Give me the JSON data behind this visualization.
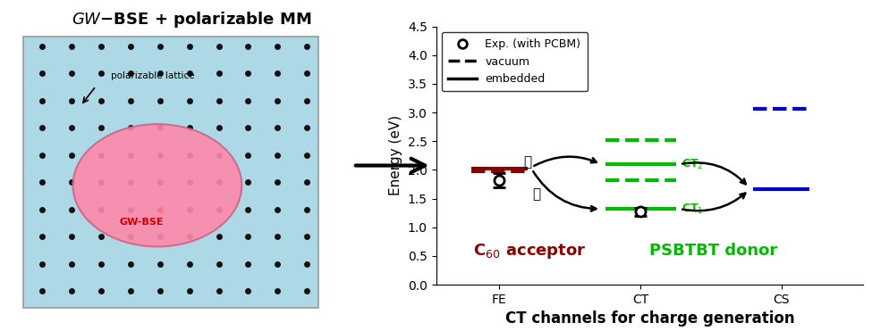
{
  "title_left": "GW−BSE + polarizable MM",
  "xlabel": "CT channels for charge generation",
  "ylabel": "Energy (eV)",
  "ylim": [
    0,
    4.5
  ],
  "xticks": [
    "FE",
    "CT",
    "CS"
  ],
  "xtick_positions": [
    0,
    1,
    2
  ],
  "bg_color": "#add8e6",
  "pink_blob_color": "#ff88aa",
  "dot_color": "#111111",
  "fe_x": 0,
  "ct_x": 1,
  "cs_x": 2,
  "dark_red": "#8b0000",
  "green": "#00bb00",
  "blue": "#0000cc",
  "fe_vacuum_y": 1.97,
  "fe_embedded_y": 2.03,
  "fe_exp_y": 1.82,
  "fe_exp_err": 0.12,
  "ct1_embedded_y": 1.32,
  "ct1_exp_y": 1.27,
  "ct1_exp_err": 0.07,
  "ct2_embedded_y": 2.1,
  "ct_vac2_y": 2.52,
  "ct_vac3_y": 1.82,
  "cs_vacuum_y": 3.07,
  "cs_embedded_y": 1.67,
  "label_C60": "C$_{60}$ acceptor",
  "label_PSBTBT": "PSBTBT donor",
  "circled_A": "Ⓐ",
  "circled_B": "Ⓑ"
}
